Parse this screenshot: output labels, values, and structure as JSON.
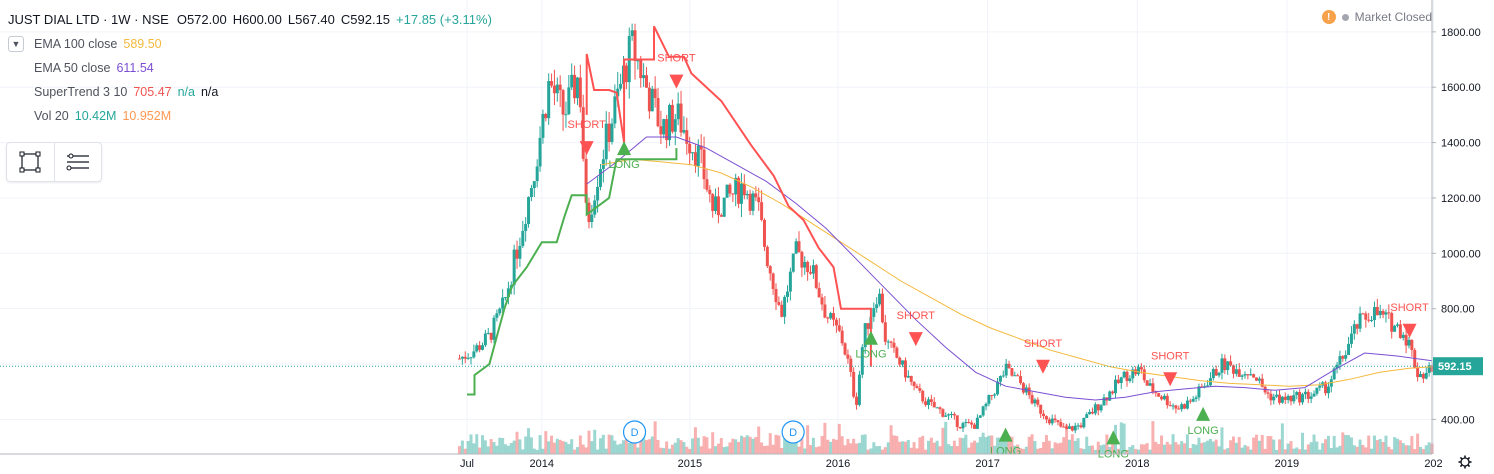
{
  "header": {
    "symbol": "JUST DIAL LTD · 1W · NSE",
    "open": "O572.00",
    "high": "H600.00",
    "low": "L567.40",
    "close": "C592.15",
    "change": "+17.85 (+3.11%)"
  },
  "status": {
    "label": "Market Closed"
  },
  "indicators": [
    {
      "name": "EMA 100 close",
      "value": "589.50",
      "value2": "",
      "value3": ""
    },
    {
      "name": "EMA 50 close",
      "value": "611.54",
      "value2": "",
      "value3": ""
    },
    {
      "name": "SuperTrend 3 10",
      "value": "705.47",
      "value2": "n/a",
      "value3": "n/a"
    },
    {
      "name": "Vol 20",
      "value": "10.42M",
      "value2": "10.952M",
      "value3": ""
    }
  ],
  "price_label": "592.15",
  "colors": {
    "up": "#26a69a",
    "down": "#ef5350",
    "ema100": "#f4b93e",
    "ema50": "#7b4fd1",
    "supertrend_up": "#4caf50",
    "supertrend_down": "#ff5252",
    "price_line": "#26a69a"
  },
  "chart_data": {
    "type": "line",
    "x_ticks": [
      "Jul",
      "2014",
      "2015",
      "2016",
      "2017",
      "2018",
      "2019",
      "202"
    ],
    "y_ticks": [
      "400.00",
      "600.00",
      "800.00",
      "1000.00",
      "1200.00",
      "1400.00",
      "1600.00",
      "1800.00"
    ],
    "ylim": [
      275,
      1915
    ],
    "x_range": [
      2013.42,
      2019.95
    ],
    "last_price": 592.15,
    "series": [
      {
        "name": "Close",
        "x": [
          2013.45,
          2013.55,
          2013.65,
          2013.75,
          2013.85,
          2013.95,
          2014.05,
          2014.15,
          2014.25,
          2014.3,
          2014.4,
          2014.5,
          2014.6,
          2014.65,
          2014.7,
          2014.8,
          2014.9,
          2014.95,
          2015.05,
          2015.15,
          2015.25,
          2015.35,
          2015.45,
          2015.5,
          2015.6,
          2015.7,
          2015.8,
          2015.9,
          2016.0,
          2016.05,
          2016.1,
          2016.15,
          2016.25,
          2016.3,
          2016.4,
          2016.5,
          2016.6,
          2016.7,
          2016.8,
          2016.9,
          2017.0,
          2017.1,
          2017.2,
          2017.3,
          2017.4,
          2017.5,
          2017.6,
          2017.7,
          2017.8,
          2017.9,
          2018.0,
          2018.05,
          2018.15,
          2018.25,
          2018.35,
          2018.45,
          2018.55,
          2018.65,
          2018.75,
          2018.85,
          2018.95,
          2019.05,
          2019.15,
          2019.25,
          2019.35,
          2019.45,
          2019.55,
          2019.65,
          2019.75,
          2019.8,
          2019.85,
          2019.9,
          2019.95
        ],
        "values": [
          620,
          650,
          700,
          820,
          1050,
          1300,
          1620,
          1500,
          1650,
          1100,
          1350,
          1550,
          1750,
          1680,
          1600,
          1450,
          1500,
          1450,
          1350,
          1150,
          1200,
          1250,
          1150,
          1000,
          780,
          1000,
          950,
          780,
          700,
          600,
          450,
          700,
          870,
          680,
          600,
          500,
          450,
          420,
          380,
          380,
          480,
          580,
          530,
          450,
          400,
          360,
          380,
          440,
          500,
          560,
          580,
          520,
          480,
          440,
          470,
          540,
          600,
          580,
          570,
          490,
          470,
          480,
          490,
          520,
          620,
          740,
          790,
          760,
          720,
          670,
          570,
          560,
          592
        ]
      },
      {
        "name": "EMA 100 close",
        "x": [
          2014.4,
          2014.6,
          2014.8,
          2015.0,
          2015.2,
          2015.4,
          2015.6,
          2015.8,
          2016.0,
          2016.2,
          2016.4,
          2016.6,
          2016.8,
          2017.0,
          2017.2,
          2017.4,
          2017.6,
          2017.8,
          2018.0,
          2018.2,
          2018.4,
          2018.6,
          2018.8,
          2019.0,
          2019.2,
          2019.4,
          2019.6,
          2019.8,
          2019.95
        ],
        "values": [
          1320,
          1340,
          1330,
          1320,
          1290,
          1240,
          1180,
          1110,
          1040,
          970,
          900,
          840,
          780,
          730,
          690,
          650,
          620,
          590,
          570,
          555,
          540,
          530,
          525,
          520,
          525,
          545,
          570,
          585,
          590
        ]
      },
      {
        "name": "EMA 50 close",
        "x": [
          2014.3,
          2014.5,
          2014.7,
          2014.9,
          2015.1,
          2015.3,
          2015.5,
          2015.7,
          2015.9,
          2016.1,
          2016.3,
          2016.5,
          2016.7,
          2016.9,
          2017.1,
          2017.3,
          2017.5,
          2017.7,
          2017.9,
          2018.1,
          2018.3,
          2018.5,
          2018.7,
          2018.9,
          2019.1,
          2019.3,
          2019.5,
          2019.7,
          2019.95
        ],
        "values": [
          1250,
          1330,
          1420,
          1420,
          1380,
          1320,
          1260,
          1180,
          1090,
          980,
          870,
          760,
          660,
          570,
          520,
          500,
          480,
          470,
          480,
          500,
          510,
          520,
          515,
          505,
          515,
          580,
          640,
          630,
          612
        ]
      },
      {
        "name": "SuperTrend long",
        "x": [
          2013.5,
          2013.55,
          2013.55,
          2013.65,
          2013.7,
          2013.75,
          2013.8,
          2013.9,
          2014.0,
          2014.1,
          2014.15,
          2014.2,
          2014.3,
          2014.3,
          2014.45,
          2014.5,
          2014.55,
          2014.6,
          2014.9,
          2014.9
        ],
        "values": [
          490,
          490,
          560,
          600,
          700,
          800,
          880,
          950,
          1040,
          1040,
          1130,
          1210,
          1210,
          1140,
          1200,
          1340,
          1340,
          1340,
          1340,
          1380
        ]
      },
      {
        "name": "SuperTrend short",
        "x": [
          2014.3,
          2014.3,
          2014.35,
          2014.45,
          2014.5,
          2014.55,
          2014.55,
          2014.6,
          2014.75,
          2014.75,
          2014.85,
          2014.95,
          2015.0,
          2015.2,
          2015.4,
          2015.55,
          2015.65,
          2015.75,
          2015.85,
          2015.95,
          2016.0,
          2016.2,
          2016.2
        ],
        "values": [
          1500,
          1720,
          1590,
          1590,
          1580,
          1400,
          1700,
          1700,
          1700,
          1820,
          1710,
          1710,
          1650,
          1550,
          1390,
          1280,
          1170,
          1120,
          1020,
          950,
          800,
          800,
          590
        ]
      }
    ],
    "signals": [
      {
        "label": "SHORT",
        "x": 2014.3,
        "y": 1380,
        "dir": "down"
      },
      {
        "label": "LONG",
        "x": 2014.55,
        "y": 1380,
        "dir": "up"
      },
      {
        "label": "SHORT",
        "x": 2014.9,
        "y": 1620,
        "dir": "down"
      },
      {
        "label": "LONG",
        "x": 2016.2,
        "y": 695,
        "dir": "up"
      },
      {
        "label": "SHORT",
        "x": 2016.5,
        "y": 690,
        "dir": "down"
      },
      {
        "label": "SHORT",
        "x": 2017.35,
        "y": 590,
        "dir": "down"
      },
      {
        "label": "LONG",
        "x": 2017.1,
        "y": 345,
        "dir": "up"
      },
      {
        "label": "LONG",
        "x": 2017.82,
        "y": 335,
        "dir": "up"
      },
      {
        "label": "SHORT",
        "x": 2018.2,
        "y": 545,
        "dir": "down"
      },
      {
        "label": "LONG",
        "x": 2018.42,
        "y": 420,
        "dir": "up"
      },
      {
        "label": "SHORT",
        "x": 2019.8,
        "y": 720,
        "dir": "down"
      }
    ],
    "dividend_markers": [
      2014.62,
      2015.68
    ]
  }
}
